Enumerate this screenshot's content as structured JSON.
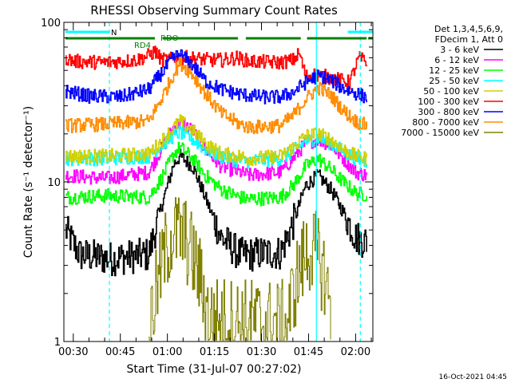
{
  "chart_data": {
    "type": "line",
    "title": "RHESSI Observing Summary Count Rates",
    "xlabel": "Start Time (31-Jul-07 00:27:02)",
    "ylabel": "Count Rate (s⁻¹ detector⁻¹)",
    "ylog": true,
    "ylim": [
      1,
      100
    ],
    "xlim_minutes": [
      27.0,
      125.5
    ],
    "x_tick_labels": [
      "00:30",
      "00:45",
      "01:00",
      "01:15",
      "01:30",
      "01:45",
      "02:00"
    ],
    "x_tick_minutes": [
      30,
      45,
      60,
      75,
      90,
      105,
      120
    ],
    "y_tick_labels": [
      "1",
      "10",
      "100"
    ],
    "y_tick_values": [
      1,
      10,
      100
    ],
    "legend_header": [
      "Det 1,3,4,5,6,9,",
      "FDecim 1, Att 0"
    ],
    "legend_position": "right",
    "timestamp": "16-Oct-2021 04:45",
    "flags": {
      "night_label": "N",
      "night_intervals": [
        [
          27.5,
          41.5
        ],
        [
          117.5,
          125.5
        ]
      ],
      "saa_lines": [
        41.5,
        121.5
      ],
      "eclipse_lines": [
        107.5
      ],
      "rd_labels": [
        "RD4",
        "RDO"
      ],
      "rdo_intervals": [
        [
          27.5,
          56.0
        ],
        [
          58.5,
          82.5
        ],
        [
          85.0,
          102.5
        ],
        [
          104.5,
          123.5
        ],
        [
          124.0,
          125.5
        ]
      ]
    },
    "series": [
      {
        "name": "3 - 6 keV",
        "color": "#000000",
        "x": [
          27.5,
          32,
          42,
          54,
          58,
          62,
          64,
          68,
          72,
          77,
          83,
          86,
          91,
          96,
          100,
          104,
          108,
          112,
          116,
          120,
          123.5
        ],
        "values": [
          5.0,
          3.5,
          3.3,
          3.5,
          7,
          13,
          14.5,
          12.5,
          8,
          4.5,
          3.5,
          3.5,
          3.6,
          3.6,
          5.5,
          9.5,
          11.0,
          9.0,
          6.5,
          4.5,
          4.2
        ]
      },
      {
        "name": "6 - 12 keV",
        "color": "#ff00ff",
        "x": [
          27.5,
          40,
          54,
          58,
          62,
          64,
          68,
          72,
          77,
          83,
          86,
          96,
          100,
          104,
          108,
          112,
          116,
          120,
          123.5
        ],
        "values": [
          11.0,
          10.5,
          11.5,
          16,
          22,
          23.5,
          21,
          16,
          12.5,
          11.5,
          11.0,
          11.5,
          14,
          17.5,
          18.5,
          17,
          14,
          11.5,
          11.0
        ]
      },
      {
        "name": "12 - 25 keV",
        "color": "#00ff00",
        "x": [
          27.5,
          40,
          54,
          58,
          62,
          64,
          68,
          72,
          77,
          83,
          86,
          96,
          100,
          104,
          108,
          112,
          116,
          120,
          123.5
        ],
        "values": [
          8.0,
          8.2,
          8.0,
          10.5,
          15,
          16.5,
          14,
          11,
          9,
          8.0,
          7.8,
          8.0,
          9.5,
          12.5,
          14,
          12,
          10,
          8.5,
          8.3
        ]
      },
      {
        "name": "25 - 50 keV",
        "color": "#00ffff",
        "x": [
          27.5,
          40,
          54,
          58,
          62,
          64,
          68,
          72,
          77,
          83,
          86,
          96,
          100,
          104,
          108,
          112,
          116,
          120,
          123.5
        ],
        "values": [
          14.0,
          14.0,
          14.5,
          17,
          19.5,
          20.5,
          18.5,
          16,
          14.5,
          13.5,
          13.5,
          14.0,
          15.5,
          18,
          19,
          17.5,
          15.5,
          14,
          13.5
        ]
      },
      {
        "name": "50 - 100 keV",
        "color": "#d0d000",
        "x": [
          27.5,
          40,
          54,
          58,
          62,
          64,
          68,
          72,
          77,
          83,
          86,
          96,
          100,
          104,
          108,
          112,
          116,
          120,
          123.5
        ],
        "values": [
          14.5,
          14.5,
          15,
          18,
          22,
          24,
          21,
          17.5,
          15,
          14.5,
          14.0,
          14.5,
          16.5,
          19.5,
          20,
          18.5,
          16,
          14.5,
          14.0
        ]
      },
      {
        "name": "100 - 300 keV",
        "color": "#ff0000",
        "x": [
          27.5,
          30,
          40,
          50,
          54,
          56,
          58,
          62,
          66,
          70,
          74,
          78,
          82,
          86,
          96,
          100,
          102,
          104,
          107,
          110,
          114,
          118,
          121,
          123.5
        ],
        "values": [
          60,
          57,
          56,
          58,
          62,
          66,
          58,
          59,
          60,
          59,
          58,
          58,
          60,
          57,
          56,
          58,
          64,
          46,
          47,
          46,
          44,
          42,
          60,
          56
        ]
      },
      {
        "name": "300 - 800 keV",
        "color": "#0000ff",
        "x": [
          27.5,
          35,
          45,
          54,
          58,
          62,
          64,
          68,
          72,
          77,
          83,
          90,
          96,
          100,
          104,
          108,
          112,
          116,
          120,
          123.5
        ],
        "values": [
          37,
          34.5,
          34,
          38,
          48,
          60,
          63,
          54,
          43,
          38,
          35.5,
          34,
          34,
          36.5,
          42,
          46.5,
          43.5,
          38.5,
          36,
          34
        ]
      },
      {
        "name": "800 - 7000 keV",
        "color": "#ff8c00",
        "x": [
          27.5,
          40,
          54,
          58,
          62,
          64,
          68,
          72,
          77,
          83,
          86,
          96,
          100,
          104,
          108,
          112,
          116,
          120,
          123.5
        ],
        "values": [
          22.5,
          23,
          24,
          33,
          48,
          56,
          47,
          36,
          27,
          23,
          22,
          22.5,
          26,
          33,
          39,
          35,
          28,
          24,
          22.5
        ]
      },
      {
        "name": "7000 - 15000 keV",
        "color": "#808000",
        "x": [
          54,
          57,
          59,
          61,
          63,
          65,
          67,
          69,
          71,
          73,
          98,
          100,
          102,
          104,
          106,
          108,
          110,
          112
        ],
        "values": [
          1.2,
          2.4,
          3.5,
          4.5,
          4.8,
          4.6,
          3.8,
          3.0,
          2.2,
          1.4,
          1.3,
          2.0,
          2.8,
          3.5,
          3.9,
          3.3,
          2.6,
          1.6
        ]
      }
    ]
  }
}
